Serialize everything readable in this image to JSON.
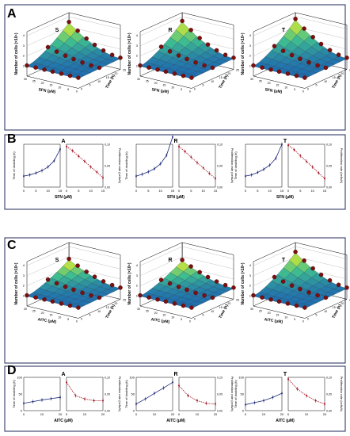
{
  "panel_labels": [
    "A",
    "B",
    "C",
    "D"
  ],
  "colors": {
    "dot": "#7a1010",
    "line_blue": "#1e2a7a",
    "line_red": "#a01020",
    "surface_low": "#1f6fb0",
    "surface_mid": "#3fbf8f",
    "surface_high": "#f2f020",
    "frame": "#1f2a5a"
  },
  "chart_data": [
    {
      "panel": "A",
      "type": "surface3d",
      "compound": "SFN",
      "subplots": [
        "S",
        "R",
        "T"
      ],
      "xlabel": "SFN (μM)",
      "ylabel": "Time (h)",
      "zlabel": "Number of cells (×10⁵)",
      "x_ticks": [
        "0",
        "5",
        "10",
        "15",
        "20",
        "25",
        "30"
      ],
      "y_ticks": [
        "0",
        "5",
        "10",
        "15",
        "20",
        "25"
      ],
      "z_ticks": [
        "1",
        "2",
        "3",
        "4"
      ],
      "z_max": [
        3.3,
        3.4,
        3.6
      ]
    },
    {
      "panel": "B",
      "type": "line",
      "compound": "SFN",
      "subplots": [
        "A",
        "R",
        "T"
      ],
      "xlabel": "SFN (μM)",
      "left_ylabel": "Time of doubling (h)",
      "right_ylabel": "Proliferation rate (cells/h)",
      "x_ticks": [
        "0",
        "5",
        "10",
        "15"
      ],
      "x": [
        0,
        2.5,
        5,
        7.5,
        10,
        12.5,
        15
      ],
      "right_y_ticks": [
        "0,00",
        "0,05",
        "0,10"
      ],
      "doubling": [
        [
          18,
          20,
          23,
          27,
          33,
          43,
          62
        ],
        [
          18,
          21,
          25,
          30,
          38,
          52,
          82
        ],
        [
          18,
          20,
          24,
          29,
          36,
          47,
          70
        ]
      ],
      "rate": [
        [
          0.095,
          0.085,
          0.072,
          0.06,
          0.047,
          0.035,
          0.022
        ],
        [
          0.095,
          0.083,
          0.07,
          0.057,
          0.045,
          0.032,
          0.02
        ],
        [
          0.098,
          0.087,
          0.073,
          0.06,
          0.047,
          0.033,
          0.02
        ]
      ]
    },
    {
      "panel": "C",
      "type": "surface3d",
      "compound": "AITC",
      "subplots": [
        "S",
        "R",
        "T"
      ],
      "xlabel": "AITC (μM)",
      "ylabel": "Time (h)",
      "zlabel": "Number of cells (×10⁵)",
      "x_ticks": [
        "0",
        "5",
        "10",
        "15",
        "20",
        "25",
        "30"
      ],
      "y_ticks": [
        "0",
        "5",
        "10",
        "15",
        "20",
        "25"
      ],
      "z_ticks": [
        "1",
        "2",
        "3",
        "4"
      ],
      "z_max": [
        2.6,
        2.5,
        3.3
      ]
    },
    {
      "panel": "D",
      "type": "line",
      "compound": "AITC",
      "subplots": [
        "A",
        "R",
        "T"
      ],
      "xlabel": "AITC (μM)",
      "left_ylabel": "Time of doubling (h)",
      "right_ylabel": "Proliferation rate (cells/h)",
      "left_y_ticks": [
        "0",
        "50",
        "100"
      ],
      "x_ticks": [
        "0",
        "10",
        "20"
      ],
      "x": [
        0,
        5,
        10,
        15,
        20
      ],
      "right_y_ticks": [
        "0,00",
        "0,05",
        "0,10"
      ],
      "doubling": [
        [
          22,
          27,
          32,
          36,
          40
        ],
        [
          20,
          35,
          52,
          68,
          85
        ],
        [
          18,
          24,
          30,
          40,
          52
        ]
      ],
      "rate": [
        [
          0.085,
          0.045,
          0.035,
          0.03,
          0.03
        ],
        [
          0.075,
          0.045,
          0.03,
          0.022,
          0.02
        ],
        [
          0.095,
          0.065,
          0.045,
          0.03,
          0.02
        ]
      ]
    }
  ]
}
